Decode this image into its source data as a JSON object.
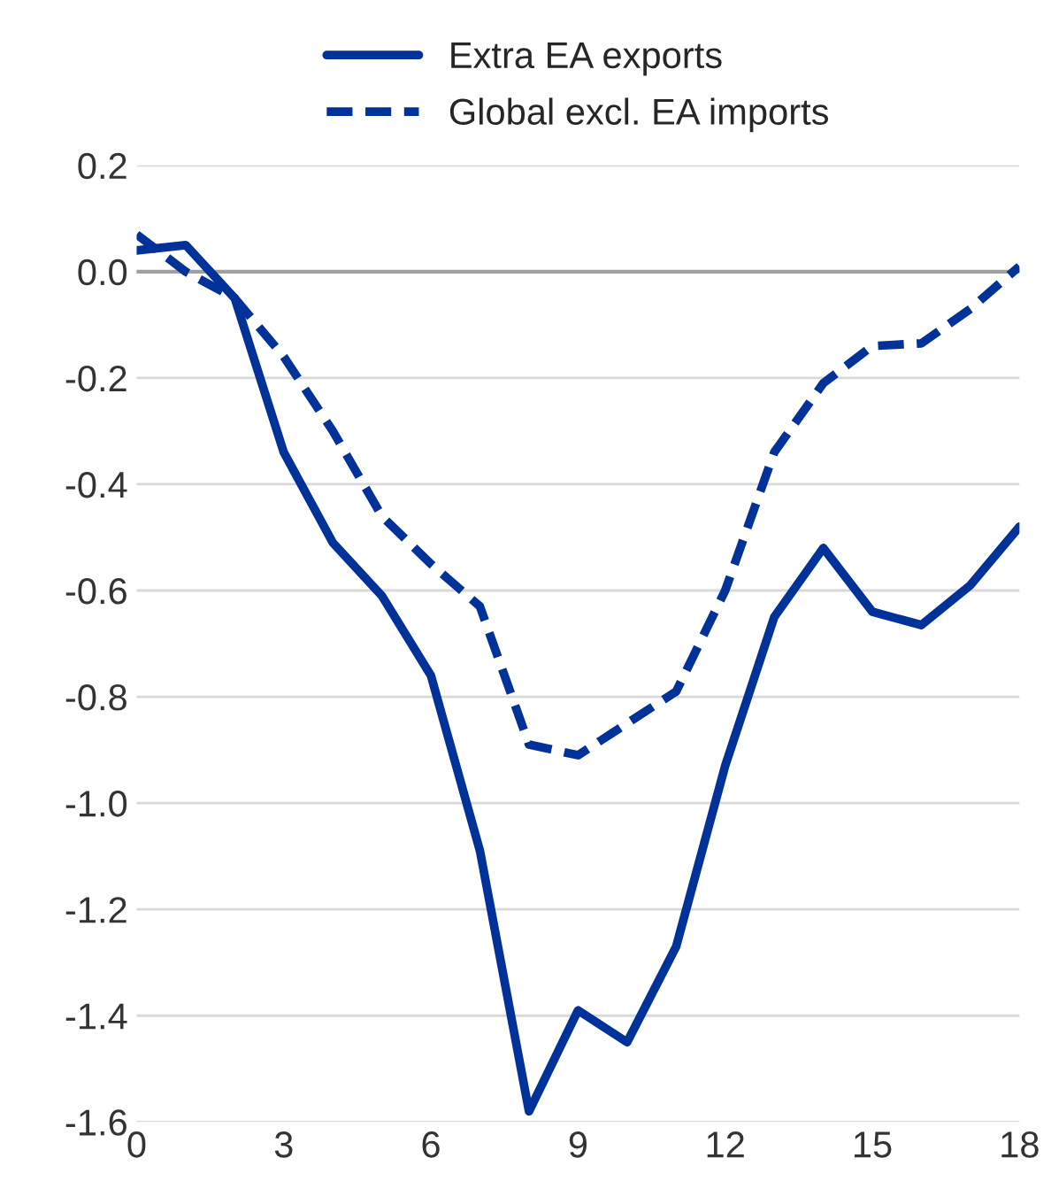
{
  "chart_data": {
    "type": "line",
    "x": [
      0,
      1,
      2,
      3,
      4,
      5,
      6,
      7,
      8,
      9,
      10,
      11,
      12,
      13,
      14,
      15,
      16,
      17,
      18
    ],
    "series": [
      {
        "name": "Extra EA exports",
        "color": "#003299",
        "line_style": "solid",
        "values": [
          0.04,
          0.05,
          -0.05,
          -0.34,
          -0.51,
          -0.61,
          -0.76,
          -1.09,
          -1.58,
          -1.39,
          -1.45,
          -1.27,
          -0.93,
          -0.65,
          -0.52,
          -0.64,
          -0.665,
          -0.59,
          -0.48
        ]
      },
      {
        "name": "Global excl. EA imports",
        "color": "#003299",
        "line_style": "dashed",
        "values": [
          0.07,
          0.0,
          -0.05,
          -0.16,
          -0.3,
          -0.46,
          -0.55,
          -0.63,
          -0.89,
          -0.91,
          -0.85,
          -0.79,
          -0.6,
          -0.34,
          -0.21,
          -0.14,
          -0.135,
          -0.07,
          0.01
        ]
      }
    ],
    "xlim": [
      0,
      18
    ],
    "xticks": [
      0,
      3,
      6,
      9,
      12,
      15,
      18
    ],
    "ylim": [
      -1.6,
      0.2
    ],
    "yticks": [
      {
        "value": 0.2,
        "label": "0.2"
      },
      {
        "value": 0.0,
        "label": "0.0"
      },
      {
        "value": -0.2,
        "label": "-0.2"
      },
      {
        "value": -0.4,
        "label": "-0.4"
      },
      {
        "value": -0.6,
        "label": "-0.6"
      },
      {
        "value": -0.8,
        "label": "-0.8"
      },
      {
        "value": -1.0,
        "label": "-1.0"
      },
      {
        "value": -1.2,
        "label": "-1.2"
      },
      {
        "value": -1.4,
        "label": "-1.4"
      },
      {
        "value": -1.6,
        "label": "-1.6"
      }
    ],
    "grid": "y",
    "legend": "top",
    "ref_lines": [
      {
        "axis": "y",
        "value": 0,
        "color": "#a0a0a0"
      }
    ]
  }
}
